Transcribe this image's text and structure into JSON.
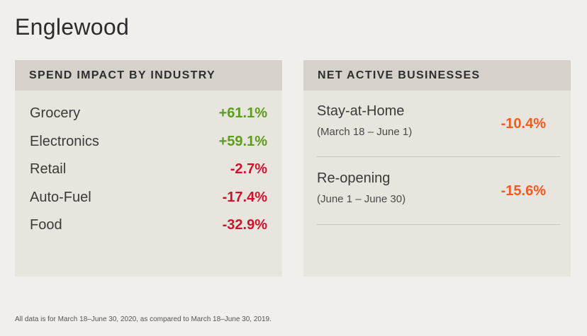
{
  "title": "Englewood",
  "spend_impact": {
    "header": "SPEND IMPACT BY INDUSTRY",
    "items": [
      {
        "name": "Grocery",
        "value": "+61.1%"
      },
      {
        "name": "Electronics",
        "value": "+59.1%"
      },
      {
        "name": "Retail",
        "value": "-2.7%"
      },
      {
        "name": "Auto-Fuel",
        "value": "-17.4%"
      },
      {
        "name": "Food",
        "value": "-32.9%"
      }
    ]
  },
  "net_active": {
    "header": "NET ACTIVE BUSINESSES",
    "periods": [
      {
        "name": "Stay-at-Home",
        "dates": "(March 18 – June 1)",
        "value": "-10.4%"
      },
      {
        "name": "Re-opening",
        "dates": "(June 1 – June 30)",
        "value": "-15.6%"
      }
    ]
  },
  "colors": {
    "positive": "#5a9e1c",
    "negative": "#d0112b",
    "net_negative": "#f25a1e"
  },
  "footnote": "All data is for March 18–June 30, 2020, as compared to March 18–June 30, 2019."
}
